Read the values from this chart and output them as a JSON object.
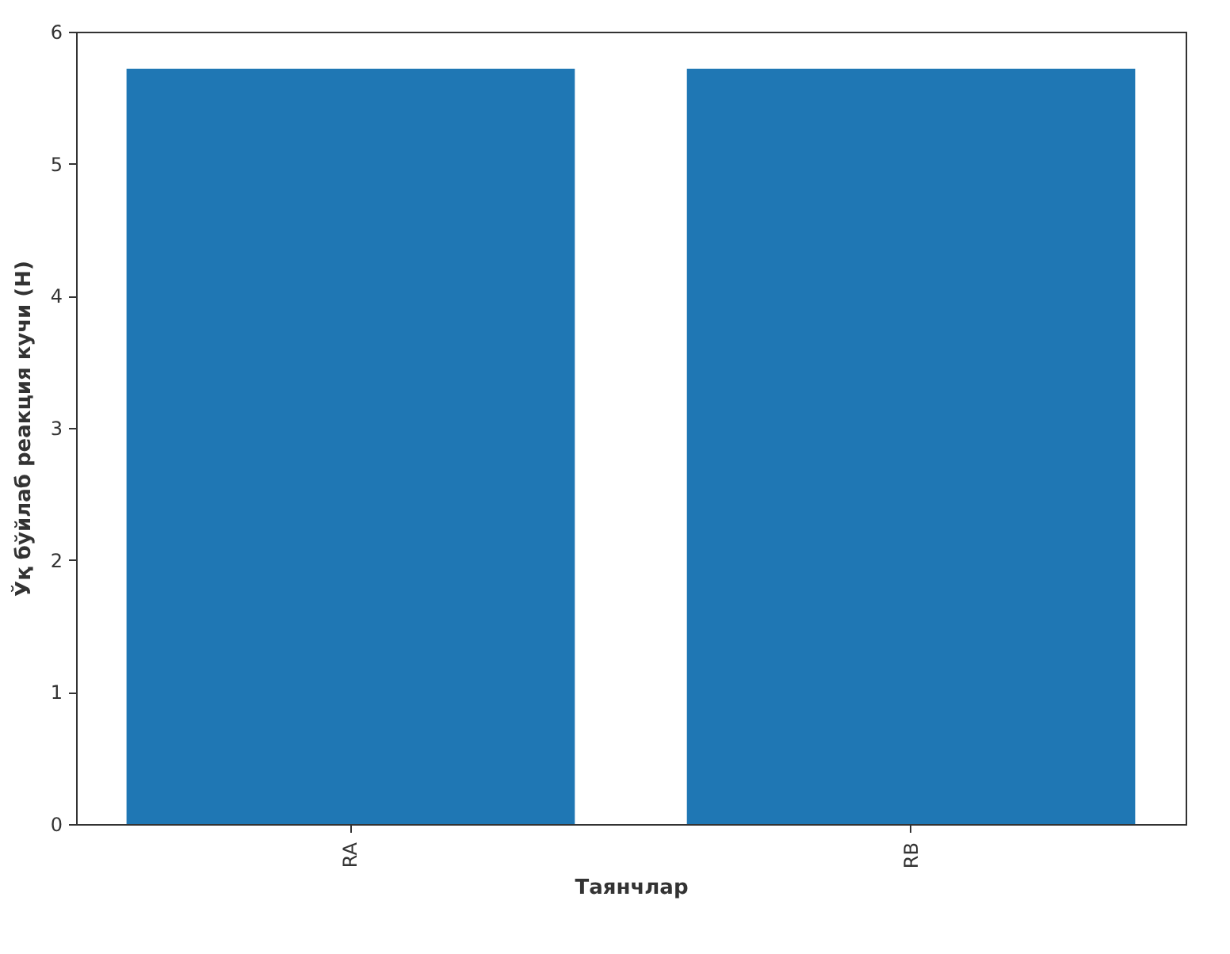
{
  "chart_data": {
    "type": "bar",
    "xlabel": "Таянчлар",
    "ylabel": "Ўқ бўйлаб реакция кучи (Н)",
    "categories": [
      "RA",
      "RB"
    ],
    "values": [
      5.72,
      5.72
    ],
    "color": "#1f77b4",
    "ylim": [
      0,
      6
    ],
    "yticks": [
      0,
      1,
      2,
      3,
      4,
      5,
      6
    ],
    "grid": false
  }
}
